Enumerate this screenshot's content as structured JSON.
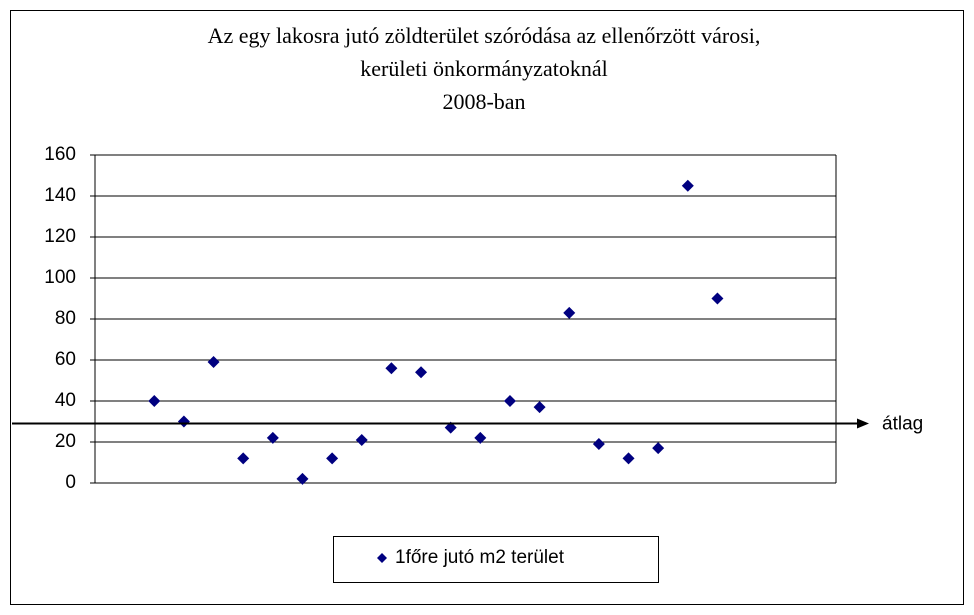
{
  "chart_data": {
    "type": "scatter",
    "title": [
      "Az egy lakosra jutó zöldterület szóródása az ellenőrzött városi,",
      "kerületi önkormányzatoknál",
      "2008-ban"
    ],
    "series": [
      {
        "name": "1főre jutó m2 terület",
        "color": "#000080",
        "x": [
          2,
          3,
          4,
          5,
          6,
          7,
          8,
          9,
          10,
          11,
          12,
          13,
          14,
          15,
          16,
          17,
          18,
          19,
          20,
          21
        ],
        "values": [
          40,
          30,
          59,
          12,
          22,
          2,
          12,
          21,
          56,
          54,
          27,
          22,
          40,
          37,
          83,
          19,
          12,
          17,
          145,
          90
        ]
      }
    ],
    "xlim": [
      0,
      25
    ],
    "ylim": [
      0,
      160
    ],
    "yticks": [
      0,
      20,
      40,
      60,
      80,
      100,
      120,
      140,
      160
    ],
    "grid": true,
    "reference_line": {
      "value": 29,
      "label": "átlag"
    }
  }
}
